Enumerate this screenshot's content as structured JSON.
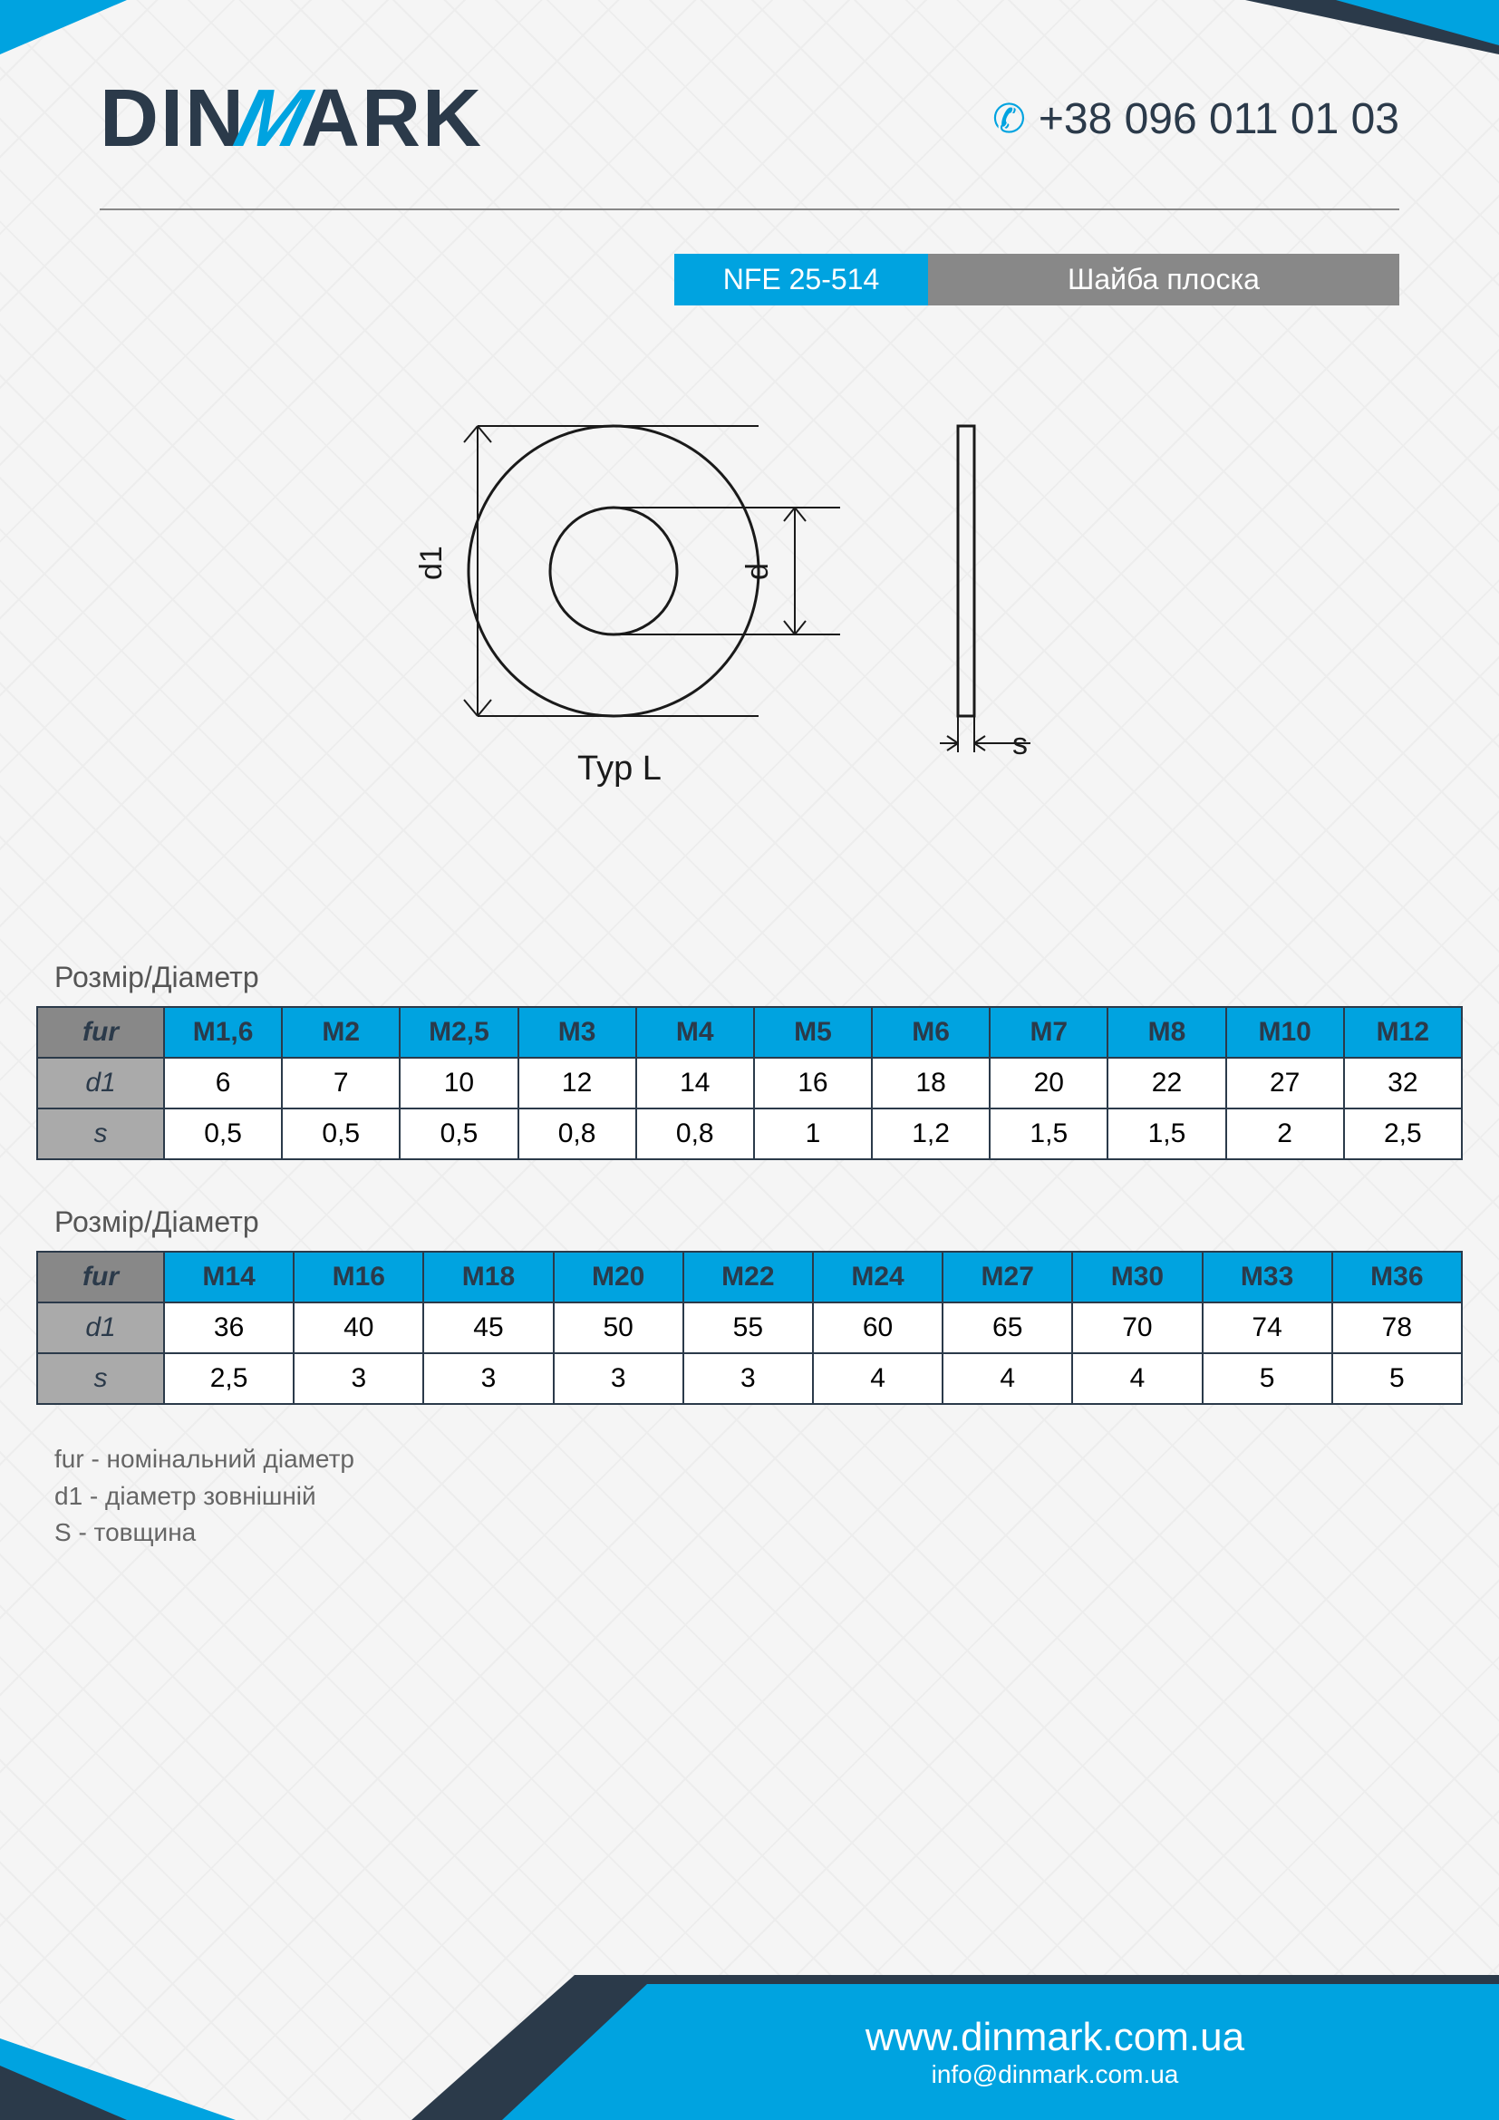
{
  "header": {
    "logo_pre": "DIN",
    "logo_m": "M",
    "logo_post": "ARK",
    "phone": "+38 096 011 01 03"
  },
  "title": {
    "code": "NFE 25-514",
    "name": "Шайба плоска"
  },
  "diagram": {
    "label_d1": "d1",
    "label_d": "d",
    "label_s": "s",
    "type_label": "Typ L",
    "stroke": "#1a1a1a",
    "stroke_width": 3
  },
  "section_label": "Розмір/Діаметр",
  "table1": {
    "row_headers": [
      "fur",
      "d1",
      "s"
    ],
    "sizes": [
      "M1,6",
      "M2",
      "M2,5",
      "M3",
      "M4",
      "M5",
      "M6",
      "M7",
      "M8",
      "M10",
      "M12"
    ],
    "d1": [
      "6",
      "7",
      "10",
      "12",
      "14",
      "16",
      "18",
      "20",
      "22",
      "27",
      "32"
    ],
    "s": [
      "0,5",
      "0,5",
      "0,5",
      "0,8",
      "0,8",
      "1",
      "1,2",
      "1,5",
      "1,5",
      "2",
      "2,5"
    ]
  },
  "table2": {
    "row_headers": [
      "fur",
      "d1",
      "s"
    ],
    "sizes": [
      "M14",
      "M16",
      "M18",
      "M20",
      "M22",
      "M24",
      "M27",
      "M30",
      "M33",
      "M36"
    ],
    "d1": [
      "36",
      "40",
      "45",
      "50",
      "55",
      "60",
      "65",
      "70",
      "74",
      "78"
    ],
    "s": [
      "2,5",
      "3",
      "3",
      "3",
      "3",
      "4",
      "4",
      "4",
      "5",
      "5"
    ]
  },
  "legend": {
    "l1": "fur - номінальний діаметр",
    "l2": "d1 - діаметр зовнішній",
    "l3": "S - товщина"
  },
  "footer": {
    "url": "www.dinmark.com.ua",
    "email": "info@dinmark.com.ua"
  },
  "colors": {
    "accent": "#00a3e0",
    "dark": "#2b3a4a",
    "grey": "#888888"
  }
}
